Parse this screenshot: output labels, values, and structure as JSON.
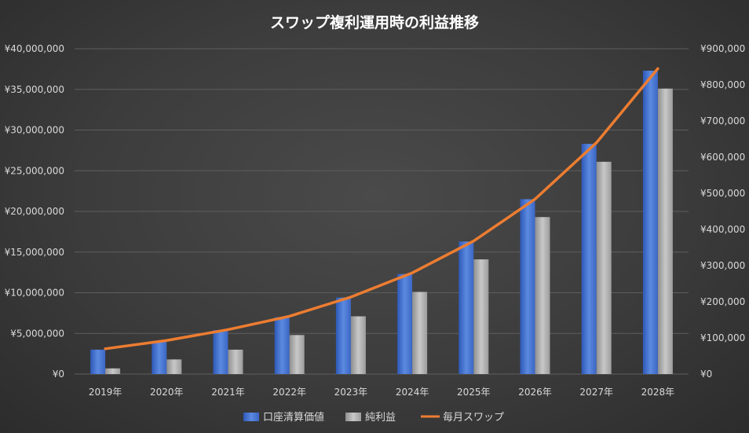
{
  "chart_data": {
    "type": "bar",
    "title": "スワップ複利運用時の利益推移",
    "categories": [
      "2019年",
      "2020年",
      "2021年",
      "2022年",
      "2023年",
      "2024年",
      "2025年",
      "2026年",
      "2027年",
      "2028年"
    ],
    "series": [
      {
        "name": "口座清算価値",
        "type": "bar",
        "axis": "left",
        "color": "#4472c4",
        "values": [
          3000000,
          4000000,
          5400000,
          7000000,
          9400000,
          12300000,
          16300000,
          21500000,
          28300000,
          37300000
        ]
      },
      {
        "name": "純利益",
        "type": "bar",
        "axis": "left",
        "color": "#a5a5a5",
        "values": [
          700000,
          1800000,
          3000000,
          4800000,
          7100000,
          10100000,
          14100000,
          19300000,
          26100000,
          35100000
        ]
      },
      {
        "name": "毎月スワップ",
        "type": "line",
        "axis": "right",
        "color": "#ed7d31",
        "values": [
          70000,
          93000,
          123000,
          160000,
          213000,
          280000,
          368000,
          484000,
          640000,
          845000
        ]
      }
    ],
    "y_left": {
      "min": 0,
      "max": 40000000,
      "ticks": [
        "¥0",
        "¥5,000,000",
        "¥10,000,000",
        "¥15,000,000",
        "¥20,000,000",
        "¥25,000,000",
        "¥30,000,000",
        "¥35,000,000",
        "¥40,000,000"
      ]
    },
    "y_right": {
      "min": 0,
      "max": 900000,
      "ticks": [
        "¥0",
        "¥100,000",
        "¥200,000",
        "¥300,000",
        "¥400,000",
        "¥500,000",
        "¥600,000",
        "¥700,000",
        "¥800,000",
        "¥900,000"
      ]
    },
    "grid": true,
    "legend": "bottom"
  }
}
